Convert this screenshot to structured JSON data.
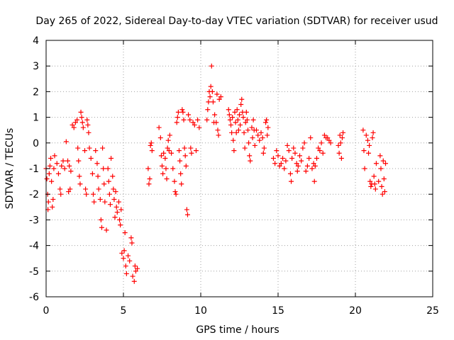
{
  "chart_data": {
    "type": "scatter",
    "title": "Day 265 of 2022, Sidereal Day-to-day VTEC variation (SDTVAR) for receiver usud",
    "xlabel": "GPS time / hours",
    "ylabel": "SDTVAR / TECUs",
    "xlim": [
      0,
      25
    ],
    "ylim": [
      -6,
      4
    ],
    "xticks": [
      "0",
      "5",
      "10",
      "15",
      "20",
      "25"
    ],
    "yticks": [
      "-6",
      "-5",
      "-4",
      "-3",
      "-2",
      "-1",
      "0",
      "1",
      "2",
      "3",
      "4"
    ],
    "grid": true,
    "marker": "+",
    "color": "#ff0000",
    "series": [
      {
        "name": "SDTVAR",
        "points": [
          [
            0.0,
            -1.0
          ],
          [
            0.05,
            -1.4
          ],
          [
            0.1,
            -2.0
          ],
          [
            0.12,
            -2.6
          ],
          [
            0.15,
            -2.3
          ],
          [
            0.2,
            -1.2
          ],
          [
            0.25,
            -0.9
          ],
          [
            0.3,
            -0.6
          ],
          [
            0.35,
            -1.5
          ],
          [
            0.4,
            -2.5
          ],
          [
            0.45,
            -2.2
          ],
          [
            0.5,
            -1.0
          ],
          [
            0.55,
            -0.5
          ],
          [
            0.7,
            -0.8
          ],
          [
            0.8,
            -1.2
          ],
          [
            0.9,
            -1.8
          ],
          [
            0.95,
            -2.0
          ],
          [
            1.0,
            -0.9
          ],
          [
            1.1,
            -0.7
          ],
          [
            1.2,
            -1.0
          ],
          [
            1.3,
            0.05
          ],
          [
            1.4,
            -0.7
          ],
          [
            1.5,
            -0.9
          ],
          [
            1.6,
            -1.1
          ],
          [
            1.45,
            -1.9
          ],
          [
            1.55,
            -1.8
          ],
          [
            1.7,
            0.7
          ],
          [
            1.8,
            0.6
          ],
          [
            1.9,
            0.8
          ],
          [
            2.0,
            0.9
          ],
          [
            2.05,
            -0.2
          ],
          [
            2.1,
            -0.7
          ],
          [
            2.15,
            -1.3
          ],
          [
            2.2,
            -1.6
          ],
          [
            2.25,
            1.2
          ],
          [
            2.3,
            1.0
          ],
          [
            2.35,
            0.8
          ],
          [
            2.4,
            0.6
          ],
          [
            2.5,
            -0.3
          ],
          [
            2.55,
            -1.8
          ],
          [
            2.6,
            -2.0
          ],
          [
            2.65,
            0.9
          ],
          [
            2.7,
            0.7
          ],
          [
            2.75,
            0.4
          ],
          [
            2.8,
            -0.2
          ],
          [
            2.9,
            -0.6
          ],
          [
            3.0,
            -1.2
          ],
          [
            3.05,
            -2.0
          ],
          [
            3.1,
            -2.3
          ],
          [
            3.2,
            -0.3
          ],
          [
            3.3,
            -0.8
          ],
          [
            3.35,
            -1.3
          ],
          [
            3.4,
            -1.8
          ],
          [
            3.5,
            -2.2
          ],
          [
            3.55,
            -3.0
          ],
          [
            3.6,
            -3.3
          ],
          [
            3.65,
            -0.2
          ],
          [
            3.7,
            -1.0
          ],
          [
            3.75,
            -1.6
          ],
          [
            3.8,
            -2.3
          ],
          [
            3.9,
            -3.4
          ],
          [
            4.0,
            -1.0
          ],
          [
            4.05,
            -1.5
          ],
          [
            4.1,
            -2.0
          ],
          [
            4.15,
            -2.4
          ],
          [
            4.2,
            -0.6
          ],
          [
            4.3,
            -1.3
          ],
          [
            4.35,
            -1.8
          ],
          [
            4.4,
            -2.2
          ],
          [
            4.45,
            -2.9
          ],
          [
            4.5,
            -1.9
          ],
          [
            4.55,
            -2.5
          ],
          [
            4.6,
            -2.7
          ],
          [
            4.7,
            -2.3
          ],
          [
            4.75,
            -3.0
          ],
          [
            4.8,
            -3.2
          ],
          [
            4.85,
            -2.6
          ],
          [
            4.9,
            -4.3
          ],
          [
            5.0,
            -4.5
          ],
          [
            5.05,
            -4.2
          ],
          [
            5.1,
            -3.5
          ],
          [
            5.15,
            -4.8
          ],
          [
            5.2,
            -5.1
          ],
          [
            5.3,
            -4.4
          ],
          [
            5.4,
            -4.6
          ],
          [
            5.5,
            -3.7
          ],
          [
            5.55,
            -3.9
          ],
          [
            5.6,
            -5.2
          ],
          [
            5.7,
            -5.4
          ],
          [
            5.75,
            -4.8
          ],
          [
            5.8,
            -5.0
          ],
          [
            5.9,
            -4.9
          ],
          [
            6.6,
            -1.0
          ],
          [
            6.65,
            -1.6
          ],
          [
            6.7,
            -1.4
          ],
          [
            6.75,
            -0.1
          ],
          [
            6.8,
            0.0
          ],
          [
            6.85,
            -0.3
          ],
          [
            7.3,
            0.6
          ],
          [
            7.4,
            0.2
          ],
          [
            7.45,
            -0.5
          ],
          [
            7.5,
            -0.9
          ],
          [
            7.55,
            -1.2
          ],
          [
            7.6,
            -0.4
          ],
          [
            7.7,
            -0.6
          ],
          [
            7.75,
            -1.0
          ],
          [
            7.8,
            -1.4
          ],
          [
            7.85,
            -0.2
          ],
          [
            7.9,
            0.1
          ],
          [
            7.95,
            -0.3
          ],
          [
            8.0,
            0.3
          ],
          [
            8.1,
            -0.4
          ],
          [
            8.2,
            -1.0
          ],
          [
            8.3,
            -1.5
          ],
          [
            8.35,
            -1.9
          ],
          [
            8.4,
            -2.0
          ],
          [
            8.45,
            0.8
          ],
          [
            8.5,
            1.0
          ],
          [
            8.55,
            1.2
          ],
          [
            8.6,
            -0.3
          ],
          [
            8.65,
            -0.7
          ],
          [
            8.7,
            -1.2
          ],
          [
            8.75,
            -1.6
          ],
          [
            8.8,
            1.3
          ],
          [
            8.85,
            1.2
          ],
          [
            8.9,
            0.9
          ],
          [
            8.95,
            -0.2
          ],
          [
            9.0,
            -0.5
          ],
          [
            9.05,
            -0.9
          ],
          [
            9.1,
            -2.6
          ],
          [
            9.15,
            -2.8
          ],
          [
            9.2,
            1.1
          ],
          [
            9.3,
            0.9
          ],
          [
            9.35,
            -0.2
          ],
          [
            9.4,
            -0.4
          ],
          [
            9.5,
            0.8
          ],
          [
            9.6,
            0.7
          ],
          [
            9.7,
            -0.3
          ],
          [
            9.8,
            0.9
          ],
          [
            9.9,
            0.6
          ],
          [
            10.4,
            0.9
          ],
          [
            10.45,
            1.3
          ],
          [
            10.5,
            1.6
          ],
          [
            10.55,
            2.0
          ],
          [
            10.6,
            1.8
          ],
          [
            10.65,
            2.2
          ],
          [
            10.7,
            3.0
          ],
          [
            10.75,
            2.0
          ],
          [
            10.8,
            1.6
          ],
          [
            10.85,
            0.8
          ],
          [
            10.9,
            1.1
          ],
          [
            11.0,
            0.8
          ],
          [
            11.05,
            1.9
          ],
          [
            11.1,
            0.5
          ],
          [
            11.15,
            0.3
          ],
          [
            11.2,
            1.7
          ],
          [
            11.3,
            1.8
          ],
          [
            11.8,
            1.3
          ],
          [
            11.85,
            1.1
          ],
          [
            11.9,
            0.9
          ],
          [
            11.95,
            0.7
          ],
          [
            12.0,
            0.4
          ],
          [
            12.05,
            1.0
          ],
          [
            12.1,
            0.1
          ],
          [
            12.15,
            -0.3
          ],
          [
            12.2,
            1.2
          ],
          [
            12.25,
            0.8
          ],
          [
            12.3,
            0.4
          ],
          [
            12.35,
            1.3
          ],
          [
            12.4,
            0.9
          ],
          [
            12.45,
            0.5
          ],
          [
            12.5,
            1.1
          ],
          [
            12.55,
            0.7
          ],
          [
            12.6,
            1.5
          ],
          [
            12.65,
            1.7
          ],
          [
            12.7,
            1.2
          ],
          [
            12.75,
            1.0
          ],
          [
            12.8,
            0.4
          ],
          [
            12.85,
            -0.2
          ],
          [
            12.9,
            0.8
          ],
          [
            12.95,
            1.2
          ],
          [
            13.0,
            0.9
          ],
          [
            13.05,
            0.5
          ],
          [
            13.1,
            0.0
          ],
          [
            13.15,
            -0.5
          ],
          [
            13.2,
            -0.7
          ],
          [
            13.3,
            0.6
          ],
          [
            13.35,
            0.2
          ],
          [
            13.4,
            0.9
          ],
          [
            13.45,
            0.5
          ],
          [
            13.5,
            -0.1
          ],
          [
            13.6,
            0.5
          ],
          [
            13.7,
            0.3
          ],
          [
            13.8,
            0.1
          ],
          [
            13.9,
            0.4
          ],
          [
            14.0,
            0.2
          ],
          [
            14.05,
            -0.4
          ],
          [
            14.1,
            -0.2
          ],
          [
            14.2,
            0.8
          ],
          [
            14.25,
            0.9
          ],
          [
            14.3,
            0.3
          ],
          [
            14.35,
            0.6
          ],
          [
            14.7,
            -0.6
          ],
          [
            14.8,
            -0.8
          ],
          [
            14.9,
            -0.3
          ],
          [
            15.0,
            -0.5
          ],
          [
            15.1,
            -0.9
          ],
          [
            15.2,
            -0.8
          ],
          [
            15.3,
            -0.6
          ],
          [
            15.4,
            -1.0
          ],
          [
            15.5,
            -0.7
          ],
          [
            15.6,
            -0.1
          ],
          [
            15.7,
            -0.3
          ],
          [
            15.8,
            -1.2
          ],
          [
            15.85,
            -1.5
          ],
          [
            15.9,
            -0.6
          ],
          [
            16.0,
            -0.2
          ],
          [
            16.1,
            -0.4
          ],
          [
            16.2,
            -0.8
          ],
          [
            16.25,
            -1.1
          ],
          [
            16.3,
            -0.9
          ],
          [
            16.4,
            -0.5
          ],
          [
            16.5,
            -0.7
          ],
          [
            16.6,
            -0.2
          ],
          [
            16.7,
            0.0
          ],
          [
            16.8,
            -1.1
          ],
          [
            16.9,
            -0.9
          ],
          [
            17.0,
            -0.6
          ],
          [
            17.1,
            0.2
          ],
          [
            17.2,
            -1.0
          ],
          [
            17.3,
            -0.8
          ],
          [
            17.35,
            -1.5
          ],
          [
            17.4,
            -0.9
          ],
          [
            17.5,
            -0.6
          ],
          [
            17.6,
            -0.2
          ],
          [
            17.7,
            -0.3
          ],
          [
            17.8,
            0.0
          ],
          [
            17.9,
            -0.4
          ],
          [
            18.0,
            0.3
          ],
          [
            18.1,
            0.2
          ],
          [
            18.2,
            0.2
          ],
          [
            18.3,
            0.1
          ],
          [
            18.4,
            0.0
          ],
          [
            18.9,
            -0.1
          ],
          [
            18.95,
            -0.4
          ],
          [
            19.0,
            0.3
          ],
          [
            19.05,
            0.0
          ],
          [
            19.1,
            -0.6
          ],
          [
            19.15,
            0.2
          ],
          [
            19.2,
            0.4
          ],
          [
            20.5,
            0.5
          ],
          [
            20.55,
            -0.3
          ],
          [
            20.6,
            -1.0
          ],
          [
            20.7,
            0.3
          ],
          [
            20.8,
            0.1
          ],
          [
            20.85,
            -0.4
          ],
          [
            20.9,
            -0.1
          ],
          [
            20.95,
            -1.5
          ],
          [
            21.0,
            -1.7
          ],
          [
            21.05,
            -1.6
          ],
          [
            21.1,
            0.2
          ],
          [
            21.15,
            0.4
          ],
          [
            21.2,
            -1.3
          ],
          [
            21.25,
            -1.6
          ],
          [
            21.3,
            -1.8
          ],
          [
            21.35,
            -0.8
          ],
          [
            21.5,
            -1.5
          ],
          [
            21.6,
            -0.5
          ],
          [
            21.65,
            -1.0
          ],
          [
            21.7,
            -1.7
          ],
          [
            21.75,
            -2.0
          ],
          [
            21.8,
            -0.7
          ],
          [
            21.85,
            -1.4
          ],
          [
            21.9,
            -1.9
          ],
          [
            21.95,
            -0.8
          ]
        ]
      }
    ]
  }
}
